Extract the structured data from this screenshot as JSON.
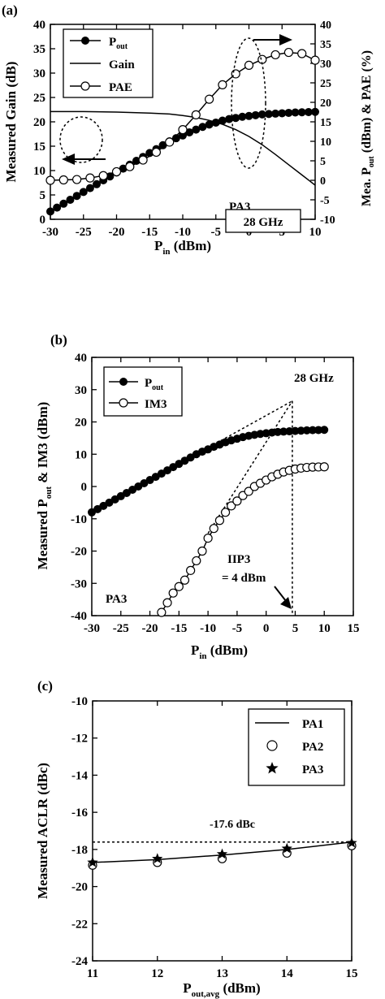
{
  "chart_data": [
    {
      "panel_label": "(a)",
      "type": "line",
      "xlabel": "P",
      "xlabel_sub": "in",
      "xlabel_tail": " (dBm)",
      "ylabel_left": "Measured Gain (dB)",
      "ylabel_right_main": "Mea. P",
      "ylabel_right_sub": "out",
      "ylabel_right_tail": " (dBm) & PAE (%)",
      "xlim": [
        -30,
        10
      ],
      "ylim_left": [
        0,
        40
      ],
      "ylim_right": [
        -10,
        40
      ],
      "xticks": [
        -30,
        -25,
        -20,
        -15,
        -10,
        -5,
        0,
        5,
        10
      ],
      "yticks_left": [
        0,
        5,
        10,
        15,
        20,
        25,
        30,
        35,
        40
      ],
      "yticks_right": [
        -10,
        -5,
        0,
        5,
        10,
        15,
        20,
        25,
        30,
        35,
        40
      ],
      "legend": {
        "position": "top-left",
        "entries": [
          {
            "label": "P",
            "sub": "out",
            "marker": "filled-circle"
          },
          {
            "label": "Gain",
            "sub": "",
            "marker": "line"
          },
          {
            "label": "PAE",
            "sub": "",
            "marker": "open-circle"
          }
        ]
      },
      "annotations": {
        "device": "PA3",
        "freq": "28 GHz"
      },
      "series": [
        {
          "name": "Gain",
          "axis": "left",
          "marker": "none",
          "x": [
            -30,
            -25,
            -20,
            -15,
            -12,
            -10,
            -8,
            -6,
            -4,
            -2,
            0,
            2,
            4,
            6,
            8,
            10
          ],
          "y": [
            22.1,
            22.1,
            22.0,
            21.8,
            21.6,
            21.3,
            20.9,
            20.3,
            19.5,
            18.4,
            17.0,
            15.3,
            13.3,
            11.2,
            9.1,
            7.0
          ]
        },
        {
          "name": "Pout",
          "axis": "right",
          "marker": "filled-circle",
          "x": [
            -30,
            -29,
            -28,
            -27,
            -26,
            -25,
            -24,
            -23,
            -22,
            -21,
            -20,
            -19,
            -18,
            -17,
            -16,
            -15,
            -14,
            -13,
            -12,
            -11,
            -10,
            -9,
            -8,
            -7,
            -6,
            -5,
            -4,
            -3,
            -2,
            -1,
            0,
            1,
            2,
            3,
            4,
            5,
            6,
            7,
            8,
            9,
            10
          ],
          "y": [
            -8,
            -7,
            -6,
            -5,
            -4,
            -3,
            -2,
            -1,
            0,
            1,
            2,
            3,
            4,
            5,
            6,
            7,
            8,
            9,
            10,
            10.8,
            11.5,
            12.3,
            13,
            13.7,
            14.3,
            14.8,
            15.3,
            15.7,
            16.0,
            16.3,
            16.5,
            16.7,
            16.9,
            17.0,
            17.1,
            17.2,
            17.3,
            17.4,
            17.45,
            17.5,
            17.55
          ]
        },
        {
          "name": "PAE",
          "axis": "right",
          "marker": "open-circle",
          "x": [
            -30,
            -28,
            -26,
            -24,
            -22,
            -20,
            -18,
            -16,
            -14,
            -12,
            -10,
            -8,
            -6,
            -4,
            -2,
            0,
            2,
            4,
            6,
            8,
            10
          ],
          "y": [
            0.0,
            0.1,
            0.2,
            0.6,
            1.2,
            2.2,
            3.5,
            5.2,
            7.2,
            9.8,
            13.0,
            16.8,
            20.8,
            24.5,
            27.3,
            29.5,
            31.0,
            32.2,
            32.8,
            32.5,
            30.8
          ]
        }
      ]
    },
    {
      "panel_label": "(b)",
      "type": "line",
      "xlabel": "P",
      "xlabel_sub": "in",
      "xlabel_tail": " (dBm)",
      "ylabel_main": "Measured P",
      "ylabel_sub": "out",
      "ylabel_tail": " & IM3 (dBm)",
      "xlim": [
        -30,
        15
      ],
      "ylim": [
        -40,
        40
      ],
      "xticks": [
        -30,
        -25,
        -20,
        -15,
        -10,
        -5,
        0,
        5,
        10,
        15
      ],
      "yticks": [
        -40,
        -30,
        -20,
        -10,
        0,
        10,
        20,
        30,
        40
      ],
      "legend": {
        "position": "top-left",
        "entries": [
          {
            "label": "P",
            "sub": "out",
            "marker": "filled-circle"
          },
          {
            "label": "IM3",
            "sub": "",
            "marker": "open-circle"
          }
        ]
      },
      "annotations": {
        "freq": "28 GHz",
        "device": "PA3",
        "iip3_line1": "IIP3",
        "iip3_line2": "= 4 dBm"
      },
      "extrapolation": {
        "intercept_x": 4.5,
        "intercept_y": 26.5,
        "pout_start": [
          -10,
          12.0
        ],
        "im3_start": [
          -10,
          -14.5
        ]
      },
      "series": [
        {
          "name": "Pout",
          "marker": "filled-circle",
          "x": [
            -30,
            -29,
            -28,
            -27,
            -26,
            -25,
            -24,
            -23,
            -22,
            -21,
            -20,
            -19,
            -18,
            -17,
            -16,
            -15,
            -14,
            -13,
            -12,
            -11,
            -10,
            -9,
            -8,
            -7,
            -6,
            -5,
            -4,
            -3,
            -2,
            -1,
            0,
            1,
            2,
            3,
            4,
            5,
            6,
            7,
            8,
            9,
            10
          ],
          "y": [
            -8,
            -7,
            -6,
            -5,
            -4,
            -3,
            -2,
            -1,
            0,
            1,
            2,
            3,
            4,
            5,
            6,
            7,
            8,
            9,
            10,
            10.8,
            11.5,
            12.3,
            13,
            13.7,
            14.3,
            14.8,
            15.3,
            15.7,
            16.0,
            16.3,
            16.5,
            16.7,
            16.9,
            17.0,
            17.1,
            17.2,
            17.3,
            17.4,
            17.45,
            17.5,
            17.55
          ]
        },
        {
          "name": "IM3",
          "marker": "open-circle",
          "x": [
            -18,
            -17,
            -16,
            -15,
            -14,
            -13,
            -12,
            -11,
            -10,
            -9,
            -8,
            -7,
            -6,
            -5,
            -4,
            -3,
            -2,
            -1,
            0,
            1,
            2,
            3,
            4,
            5,
            6,
            7,
            8,
            9,
            10
          ],
          "y": [
            -39,
            -36,
            -33,
            -31,
            -29,
            -26,
            -23,
            -20,
            -16,
            -13,
            -10.5,
            -8,
            -6,
            -4.5,
            -2.8,
            -1.5,
            0,
            1,
            2,
            3,
            3.8,
            4.5,
            5,
            5.4,
            5.7,
            5.9,
            6,
            6.05,
            6.1
          ]
        }
      ]
    },
    {
      "panel_label": "(c)",
      "type": "line",
      "xlabel": "P",
      "xlabel_sub": "out,avg",
      "xlabel_tail": " (dBm)",
      "ylabel": "Measured ACLR (dBc)",
      "xlim": [
        11,
        15
      ],
      "ylim": [
        -24,
        -10
      ],
      "xticks": [
        11,
        12,
        13,
        14,
        15
      ],
      "yticks": [
        -24,
        -22,
        -20,
        -18,
        -16,
        -14,
        -12,
        -10
      ],
      "legend": {
        "position": "top-right",
        "entries": [
          {
            "label": "PA1",
            "marker": "line"
          },
          {
            "label": "PA2",
            "marker": "open-circle"
          },
          {
            "label": "PA3",
            "marker": "star"
          }
        ]
      },
      "reference_line": {
        "y": -17.6,
        "label": "-17.6 dBc"
      },
      "series": [
        {
          "name": "PA1",
          "marker": "none",
          "x": [
            11,
            12,
            13,
            14,
            15
          ],
          "y": [
            -18.7,
            -18.55,
            -18.3,
            -18.0,
            -17.6
          ]
        },
        {
          "name": "PA2",
          "marker": "open-circle",
          "x": [
            11,
            12,
            13,
            14,
            15
          ],
          "y": [
            -18.85,
            -18.7,
            -18.5,
            -18.2,
            -17.8
          ]
        },
        {
          "name": "PA3",
          "marker": "star",
          "x": [
            11,
            12,
            13,
            14,
            15
          ],
          "y": [
            -18.7,
            -18.5,
            -18.25,
            -17.95,
            -17.65
          ]
        }
      ]
    }
  ]
}
